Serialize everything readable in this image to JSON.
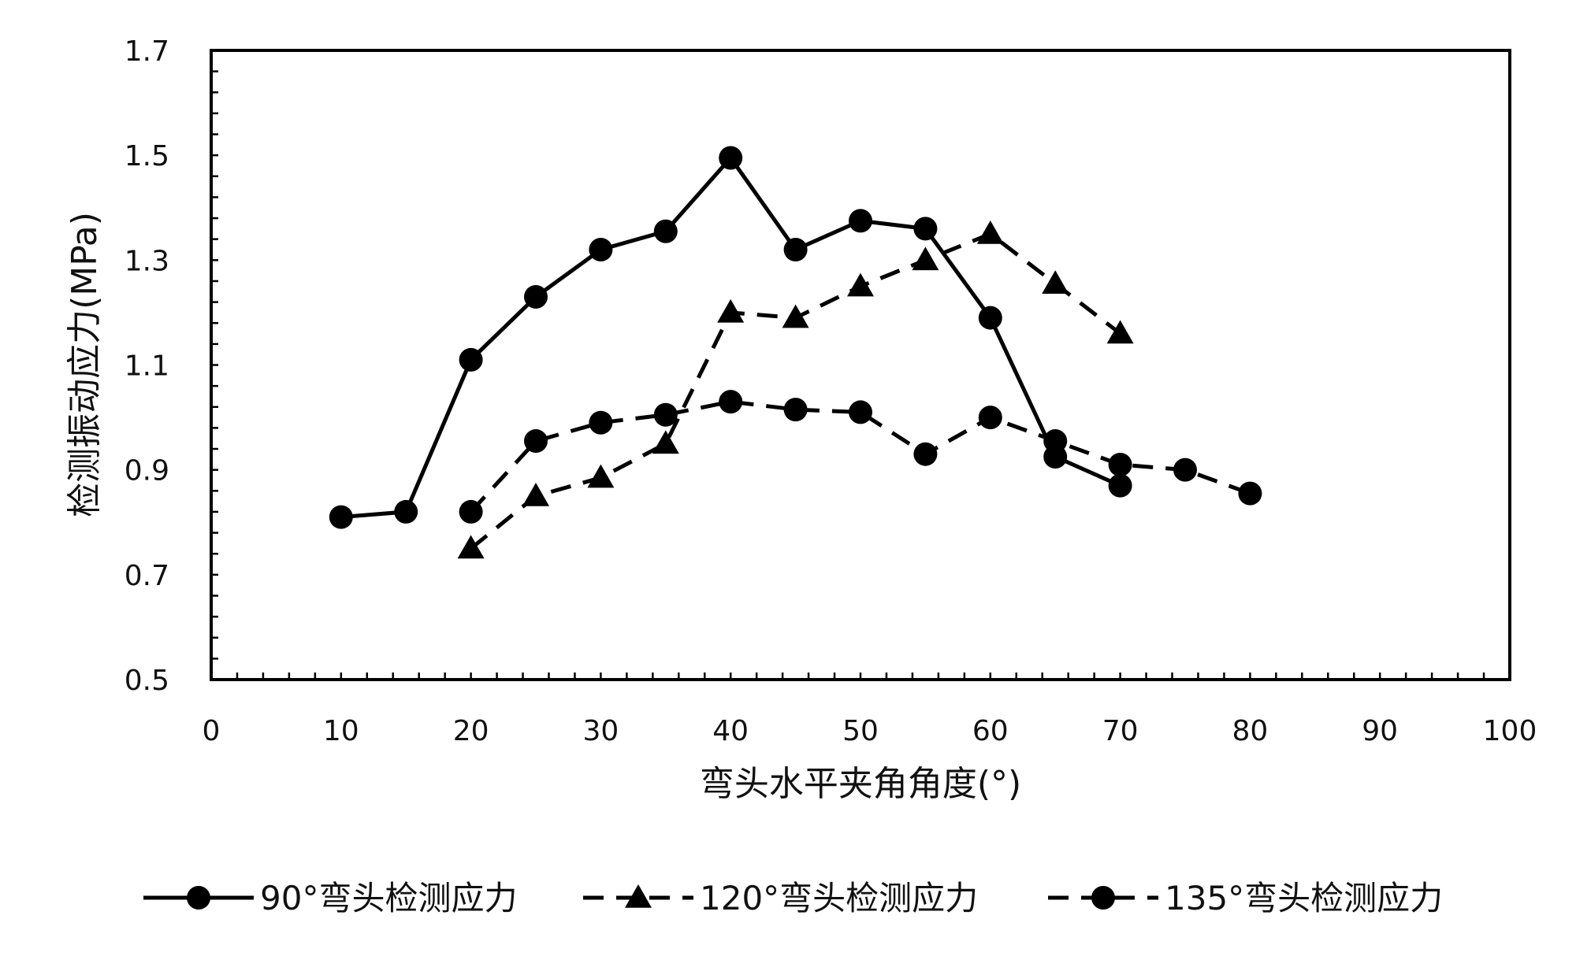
{
  "chart_data": {
    "type": "line",
    "xlabel": "弯头水平夹角角度(°)",
    "ylabel": "检测振动应力(MPa)",
    "xlim": [
      0,
      100
    ],
    "ylim": [
      0.5,
      1.7
    ],
    "xticks": [
      "0",
      "10",
      "20",
      "30",
      "40",
      "50",
      "60",
      "70",
      "80",
      "90",
      "100"
    ],
    "yticks": [
      "0.5",
      "0.7",
      "0.9",
      "1.1",
      "1.3",
      "1.5",
      "1.7"
    ],
    "grid": false,
    "legend_position": "bottom",
    "series": [
      {
        "name": "90°弯头检测应力",
        "line_style": "solid",
        "marker": "circle",
        "color": "#000000",
        "x": [
          10,
          15,
          20,
          25,
          30,
          35,
          40,
          45,
          50,
          55,
          60,
          65,
          70
        ],
        "y": [
          0.81,
          0.82,
          1.11,
          1.23,
          1.32,
          1.355,
          1.495,
          1.32,
          1.375,
          1.36,
          1.19,
          0.925,
          0.87
        ]
      },
      {
        "name": "120°弯头检测应力",
        "line_style": "dashed",
        "marker": "triangle",
        "color": "#000000",
        "x": [
          20,
          25,
          30,
          35,
          40,
          45,
          50,
          55,
          60,
          65,
          70
        ],
        "y": [
          0.75,
          0.85,
          0.885,
          0.95,
          1.2,
          1.19,
          1.25,
          1.3,
          1.35,
          1.255,
          1.16
        ]
      },
      {
        "name": "135°弯头检测应力",
        "line_style": "dashed",
        "marker": "circle",
        "color": "#000000",
        "x": [
          20,
          25,
          30,
          35,
          40,
          45,
          50,
          55,
          60,
          65,
          70,
          75,
          80
        ],
        "y": [
          0.82,
          0.955,
          0.99,
          1.005,
          1.03,
          1.015,
          1.01,
          0.93,
          1.0,
          0.955,
          0.91,
          0.9,
          0.855
        ]
      }
    ]
  }
}
